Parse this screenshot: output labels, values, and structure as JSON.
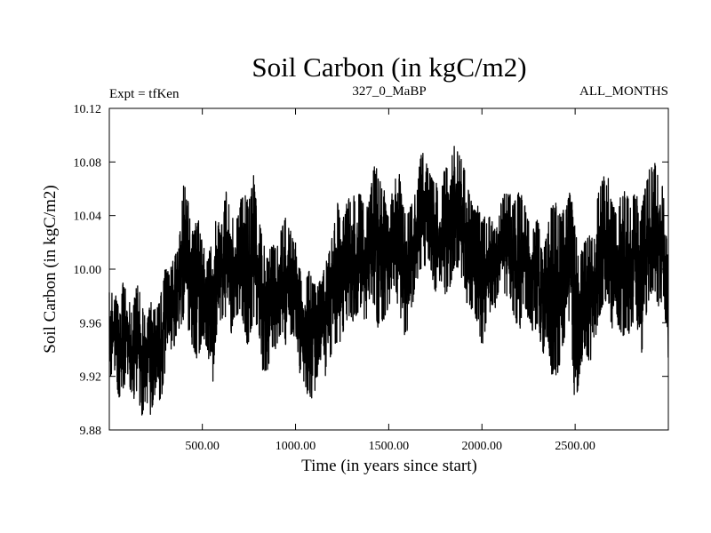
{
  "chart_data": {
    "type": "line",
    "title": "Soil Carbon (in kgC/m2)",
    "header_left": "Expt = tfKen",
    "header_center": "327_0_MaBP",
    "header_right": "ALL_MONTHS",
    "xlabel": "Time (in years since start)",
    "ylabel": "Soil Carbon (in kgC/m2)",
    "xlim": [
      1,
      3000
    ],
    "ylim": [
      9.88,
      10.12
    ],
    "x_ticks": [
      500,
      1000,
      1500,
      2000,
      2500
    ],
    "x_tick_labels": [
      "500.00",
      "1000.00",
      "1500.00",
      "2000.00",
      "2500.00"
    ],
    "y_ticks": [
      9.88,
      9.92,
      9.96,
      10.0,
      10.04,
      10.08,
      10.12
    ],
    "y_tick_labels": [
      "9.88",
      "9.92",
      "9.96",
      "10.00",
      "10.04",
      "10.08",
      "10.12"
    ],
    "grid": false,
    "line_color": "#000000",
    "series": [
      {
        "x": [
          1,
          25,
          50,
          75,
          100,
          125,
          150,
          175,
          200,
          225,
          250,
          275,
          300,
          325,
          350,
          375,
          400,
          425,
          450,
          475,
          500,
          525,
          550,
          575,
          600,
          625,
          650,
          675,
          700,
          725,
          750,
          775,
          800,
          825,
          850,
          875,
          900,
          925,
          950,
          975,
          1000,
          1025,
          1050,
          1075,
          1100,
          1125,
          1150,
          1175,
          1200,
          1225,
          1250,
          1275,
          1300,
          1325,
          1350,
          1375,
          1400,
          1425,
          1450,
          1475,
          1500,
          1525,
          1550,
          1575,
          1600,
          1625,
          1650,
          1675,
          1700,
          1725,
          1750,
          1775,
          1800,
          1825,
          1850,
          1875,
          1900,
          1925,
          1950,
          1975,
          2000,
          2025,
          2050,
          2075,
          2100,
          2125,
          2150,
          2175,
          2200,
          2225,
          2250,
          2275,
          2300,
          2325,
          2350,
          2375,
          2400,
          2425,
          2450,
          2475,
          2500,
          2525,
          2550,
          2575,
          2600,
          2625,
          2650,
          2675,
          2700,
          2725,
          2750,
          2775,
          2800,
          2825,
          2850,
          2875,
          2900,
          2925,
          2950,
          2975,
          3000
        ],
        "min": [
          9.91,
          9.93,
          9.9,
          9.91,
          9.92,
          9.9,
          9.91,
          9.89,
          9.9,
          9.89,
          9.91,
          9.9,
          9.92,
          9.94,
          9.94,
          9.95,
          9.96,
          9.95,
          9.94,
          9.93,
          9.95,
          9.94,
          9.9,
          9.95,
          9.96,
          9.96,
          9.95,
          9.96,
          9.97,
          9.95,
          9.94,
          9.96,
          9.95,
          9.92,
          9.92,
          9.94,
          9.94,
          9.95,
          9.94,
          9.95,
          9.95,
          9.92,
          9.91,
          9.9,
          9.9,
          9.93,
          9.92,
          9.92,
          9.94,
          9.94,
          9.95,
          9.96,
          9.96,
          9.96,
          9.97,
          9.95,
          9.98,
          9.97,
          9.95,
          9.96,
          9.97,
          9.99,
          9.97,
          9.95,
          9.95,
          9.97,
          9.99,
          10.0,
          10.0,
          10.0,
          9.98,
          9.99,
          9.98,
          9.98,
          10.0,
          10.0,
          9.99,
          9.97,
          9.97,
          9.96,
          9.94,
          9.96,
          9.97,
          9.97,
          9.99,
          9.98,
          9.98,
          9.96,
          9.95,
          9.97,
          9.96,
          9.95,
          9.96,
          9.93,
          9.95,
          9.92,
          9.92,
          9.93,
          9.95,
          9.96,
          9.89,
          9.92,
          9.94,
          9.93,
          9.93,
          9.96,
          9.97,
          9.98,
          9.95,
          9.96,
          9.95,
          9.95,
          9.95,
          9.97,
          9.92,
          9.96,
          9.98,
          9.98,
          9.97,
          9.98,
          9.93
        ],
        "max": [
          9.99,
          9.98,
          9.98,
          9.99,
          9.98,
          9.97,
          9.99,
          9.98,
          9.96,
          9.98,
          9.97,
          9.98,
          10.0,
          10.0,
          10.01,
          10.02,
          10.07,
          10.05,
          10.03,
          10.04,
          10.02,
          10.01,
          10.02,
          10.04,
          10.03,
          10.06,
          10.05,
          10.03,
          10.05,
          10.06,
          10.05,
          10.07,
          10.04,
          10.03,
          10.01,
          10.02,
          10.02,
          10.03,
          10.04,
          10.03,
          10.02,
          10.0,
          9.99,
          10.0,
          9.99,
          9.99,
          10.0,
          10.01,
          10.03,
          10.05,
          10.04,
          10.05,
          10.06,
          10.05,
          10.06,
          10.04,
          10.06,
          10.08,
          10.07,
          10.06,
          10.04,
          10.07,
          10.08,
          10.05,
          10.04,
          10.05,
          10.06,
          10.09,
          10.08,
          10.07,
          10.07,
          10.05,
          10.08,
          10.08,
          10.1,
          10.09,
          10.08,
          10.06,
          10.05,
          10.05,
          10.04,
          10.04,
          10.04,
          10.03,
          10.05,
          10.06,
          10.06,
          10.05,
          10.06,
          10.05,
          10.04,
          10.03,
          10.04,
          10.01,
          10.03,
          10.05,
          10.05,
          10.04,
          10.05,
          10.06,
          10.03,
          10.01,
          10.02,
          10.03,
          10.02,
          10.06,
          10.07,
          10.07,
          10.05,
          10.04,
          10.06,
          10.06,
          10.05,
          10.06,
          10.04,
          10.06,
          10.08,
          10.08,
          10.07,
          10.06,
          10.01
        ]
      }
    ]
  }
}
